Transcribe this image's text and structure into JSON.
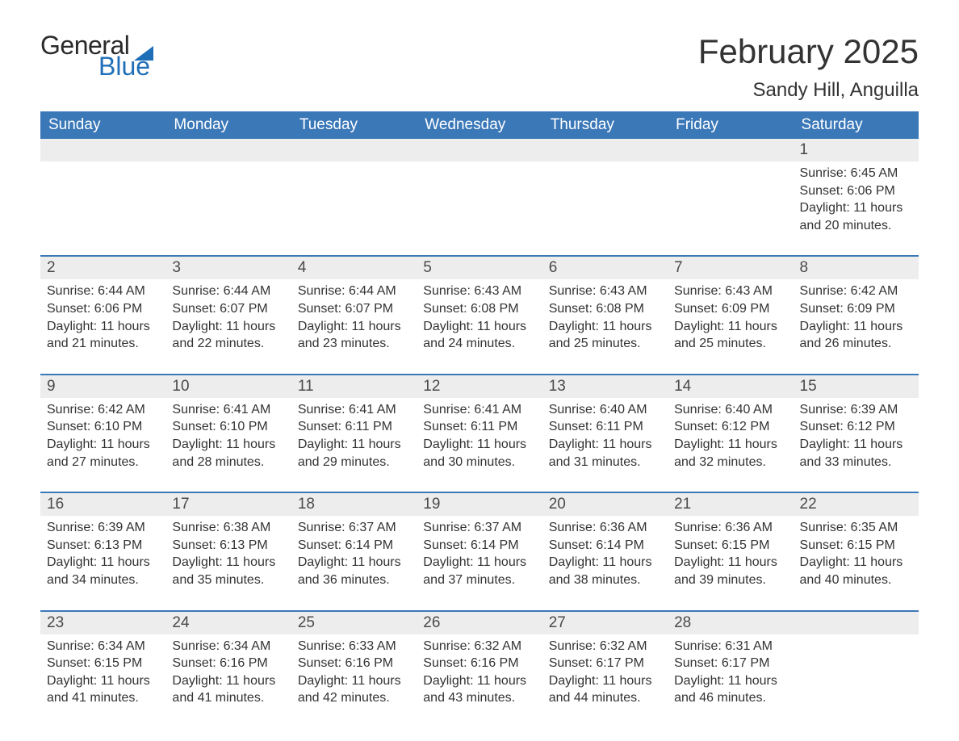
{
  "logo": {
    "word1": "General",
    "word2": "Blue",
    "icon_color": "#1f6fb8",
    "text_color_dark": "#2a2a2a"
  },
  "title": "February 2025",
  "location": "Sandy Hill, Anguilla",
  "colors": {
    "header_bg": "#3b78b8",
    "header_text": "#ffffff",
    "daynum_bg": "#ededed",
    "body_text": "#333333",
    "row_divider": "#3b78b8",
    "page_bg": "#ffffff"
  },
  "typography": {
    "title_fontsize": 42,
    "location_fontsize": 24,
    "header_fontsize": 19,
    "daynum_fontsize": 19,
    "body_fontsize": 16,
    "font_family": "Arial"
  },
  "layout": {
    "columns": 7,
    "rows": 5,
    "first_day_column_index": 6
  },
  "weekday_headers": [
    "Sunday",
    "Monday",
    "Tuesday",
    "Wednesday",
    "Thursday",
    "Friday",
    "Saturday"
  ],
  "days": [
    {
      "n": 1,
      "sunrise": "6:45 AM",
      "sunset": "6:06 PM",
      "daylight": "11 hours and 20 minutes."
    },
    {
      "n": 2,
      "sunrise": "6:44 AM",
      "sunset": "6:06 PM",
      "daylight": "11 hours and 21 minutes."
    },
    {
      "n": 3,
      "sunrise": "6:44 AM",
      "sunset": "6:07 PM",
      "daylight": "11 hours and 22 minutes."
    },
    {
      "n": 4,
      "sunrise": "6:44 AM",
      "sunset": "6:07 PM",
      "daylight": "11 hours and 23 minutes."
    },
    {
      "n": 5,
      "sunrise": "6:43 AM",
      "sunset": "6:08 PM",
      "daylight": "11 hours and 24 minutes."
    },
    {
      "n": 6,
      "sunrise": "6:43 AM",
      "sunset": "6:08 PM",
      "daylight": "11 hours and 25 minutes."
    },
    {
      "n": 7,
      "sunrise": "6:43 AM",
      "sunset": "6:09 PM",
      "daylight": "11 hours and 25 minutes."
    },
    {
      "n": 8,
      "sunrise": "6:42 AM",
      "sunset": "6:09 PM",
      "daylight": "11 hours and 26 minutes."
    },
    {
      "n": 9,
      "sunrise": "6:42 AM",
      "sunset": "6:10 PM",
      "daylight": "11 hours and 27 minutes."
    },
    {
      "n": 10,
      "sunrise": "6:41 AM",
      "sunset": "6:10 PM",
      "daylight": "11 hours and 28 minutes."
    },
    {
      "n": 11,
      "sunrise": "6:41 AM",
      "sunset": "6:11 PM",
      "daylight": "11 hours and 29 minutes."
    },
    {
      "n": 12,
      "sunrise": "6:41 AM",
      "sunset": "6:11 PM",
      "daylight": "11 hours and 30 minutes."
    },
    {
      "n": 13,
      "sunrise": "6:40 AM",
      "sunset": "6:11 PM",
      "daylight": "11 hours and 31 minutes."
    },
    {
      "n": 14,
      "sunrise": "6:40 AM",
      "sunset": "6:12 PM",
      "daylight": "11 hours and 32 minutes."
    },
    {
      "n": 15,
      "sunrise": "6:39 AM",
      "sunset": "6:12 PM",
      "daylight": "11 hours and 33 minutes."
    },
    {
      "n": 16,
      "sunrise": "6:39 AM",
      "sunset": "6:13 PM",
      "daylight": "11 hours and 34 minutes."
    },
    {
      "n": 17,
      "sunrise": "6:38 AM",
      "sunset": "6:13 PM",
      "daylight": "11 hours and 35 minutes."
    },
    {
      "n": 18,
      "sunrise": "6:37 AM",
      "sunset": "6:14 PM",
      "daylight": "11 hours and 36 minutes."
    },
    {
      "n": 19,
      "sunrise": "6:37 AM",
      "sunset": "6:14 PM",
      "daylight": "11 hours and 37 minutes."
    },
    {
      "n": 20,
      "sunrise": "6:36 AM",
      "sunset": "6:14 PM",
      "daylight": "11 hours and 38 minutes."
    },
    {
      "n": 21,
      "sunrise": "6:36 AM",
      "sunset": "6:15 PM",
      "daylight": "11 hours and 39 minutes."
    },
    {
      "n": 22,
      "sunrise": "6:35 AM",
      "sunset": "6:15 PM",
      "daylight": "11 hours and 40 minutes."
    },
    {
      "n": 23,
      "sunrise": "6:34 AM",
      "sunset": "6:15 PM",
      "daylight": "11 hours and 41 minutes."
    },
    {
      "n": 24,
      "sunrise": "6:34 AM",
      "sunset": "6:16 PM",
      "daylight": "11 hours and 41 minutes."
    },
    {
      "n": 25,
      "sunrise": "6:33 AM",
      "sunset": "6:16 PM",
      "daylight": "11 hours and 42 minutes."
    },
    {
      "n": 26,
      "sunrise": "6:32 AM",
      "sunset": "6:16 PM",
      "daylight": "11 hours and 43 minutes."
    },
    {
      "n": 27,
      "sunrise": "6:32 AM",
      "sunset": "6:17 PM",
      "daylight": "11 hours and 44 minutes."
    },
    {
      "n": 28,
      "sunrise": "6:31 AM",
      "sunset": "6:17 PM",
      "daylight": "11 hours and 46 minutes."
    }
  ],
  "labels": {
    "sunrise": "Sunrise:",
    "sunset": "Sunset:",
    "daylight": "Daylight:"
  }
}
